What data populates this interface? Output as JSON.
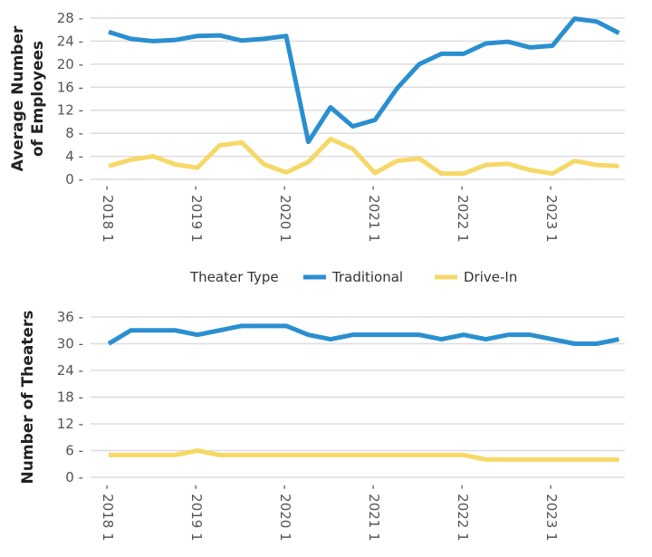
{
  "legend": {
    "title": "Theater Type",
    "placement": "center"
  },
  "chart_data": [
    {
      "type": "line",
      "ylabel": [
        "Average Number",
        "of Employees"
      ],
      "ylim": [
        0,
        28
      ],
      "yticks": [
        0,
        4,
        8,
        12,
        16,
        20,
        24,
        28
      ],
      "x": [
        "2018 1",
        "2018 2",
        "2018 3",
        "2018 4",
        "2019 1",
        "2019 2",
        "2019 3",
        "2019 4",
        "2020 1",
        "2020 2",
        "2020 3",
        "2020 4",
        "2021 1",
        "2021 2",
        "2021 3",
        "2021 4",
        "2022 1",
        "2022 2",
        "2022 3",
        "2022 4",
        "2023 1",
        "2023 2",
        "2023 3",
        "2023 4"
      ],
      "xticks": [
        "2018 1",
        "2019 1",
        "2020 1",
        "2021 1",
        "2022 1",
        "2023 1"
      ],
      "grid": true,
      "series": [
        {
          "name": "Traditional",
          "color": "#2a8fd0",
          "values": [
            25.6,
            24.4,
            24.0,
            24.2,
            24.9,
            25.0,
            24.1,
            24.4,
            24.9,
            6.5,
            12.5,
            9.2,
            10.3,
            15.8,
            20.0,
            21.8,
            21.8,
            23.6,
            23.9,
            22.9,
            23.2,
            27.9,
            27.4,
            25.4
          ]
        },
        {
          "name": "Drive-In",
          "color": "#f5d867",
          "values": [
            2.3,
            3.4,
            4.0,
            2.6,
            2.0,
            5.9,
            6.4,
            2.6,
            1.2,
            3.0,
            7.0,
            5.3,
            1.1,
            3.2,
            3.6,
            1.0,
            1.0,
            2.5,
            2.7,
            1.6,
            1.0,
            3.2,
            2.5,
            2.3
          ]
        }
      ]
    },
    {
      "type": "line",
      "ylabel": [
        "Number of Theaters"
      ],
      "ylim": [
        0,
        36
      ],
      "yticks": [
        0,
        6,
        12,
        18,
        24,
        30,
        36
      ],
      "x": [
        "2018 1",
        "2018 2",
        "2018 3",
        "2018 4",
        "2019 1",
        "2019 2",
        "2019 3",
        "2019 4",
        "2020 1",
        "2020 2",
        "2020 3",
        "2020 4",
        "2021 1",
        "2021 2",
        "2021 3",
        "2021 4",
        "2022 1",
        "2022 2",
        "2022 3",
        "2022 4",
        "2023 1",
        "2023 2",
        "2023 3",
        "2023 4"
      ],
      "xticks": [
        "2018 1",
        "2019 1",
        "2020 1",
        "2021 1",
        "2022 1",
        "2023 1"
      ],
      "grid": true,
      "series": [
        {
          "name": "Traditional",
          "color": "#2a8fd0",
          "values": [
            30,
            33,
            33,
            33,
            32,
            33,
            34,
            34,
            34,
            32,
            31,
            32,
            32,
            32,
            32,
            31,
            32,
            31,
            32,
            32,
            31,
            30,
            30,
            31
          ]
        },
        {
          "name": "Drive-In",
          "color": "#f5d867",
          "values": [
            5,
            5,
            5,
            5,
            6,
            5,
            5,
            5,
            5,
            5,
            5,
            5,
            5,
            5,
            5,
            5,
            5,
            4,
            4,
            4,
            4,
            4,
            4,
            4
          ]
        }
      ]
    }
  ]
}
